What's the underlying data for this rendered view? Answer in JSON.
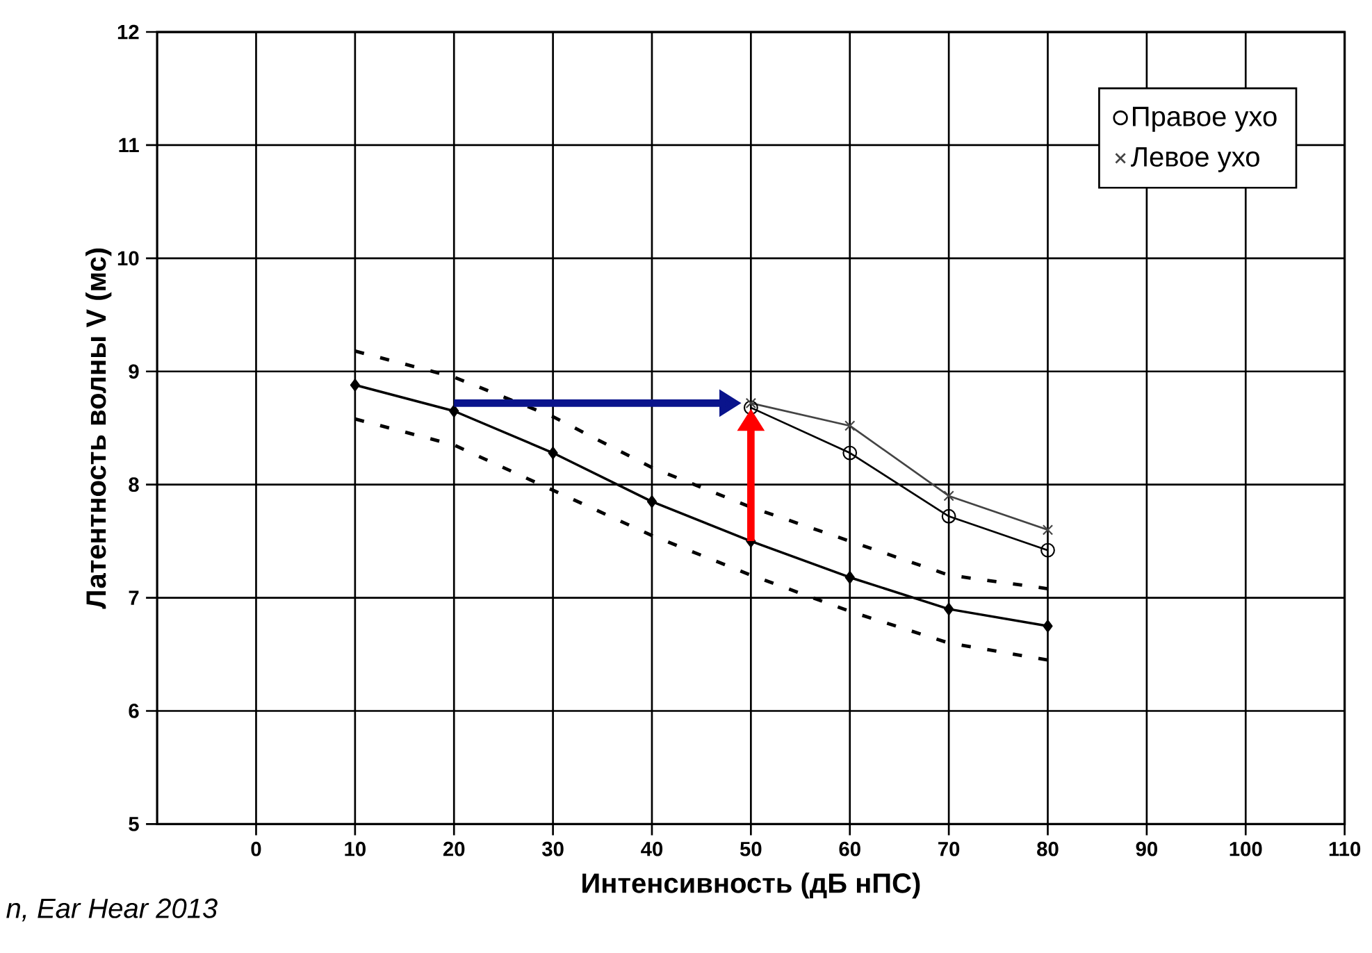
{
  "chart_data": {
    "type": "line",
    "xlabel": "Интенсивность (дБ нПС)",
    "ylabel": "Латентность волны V (мс)",
    "xlim": [
      -10,
      110
    ],
    "xticks": [
      0,
      10,
      20,
      30,
      40,
      50,
      60,
      70,
      80,
      90,
      100,
      110
    ],
    "ylim": [
      5,
      12
    ],
    "yticks": [
      5,
      6,
      7,
      8,
      9,
      10,
      11,
      12
    ],
    "grid": true,
    "legend": "top right",
    "annotations": [
      "n, Ear Hear 2013"
    ],
    "series": [
      {
        "color": "#000000",
        "marker": "diamond",
        "line_style": "solid",
        "x": [
          10,
          20,
          30,
          40,
          50,
          60,
          70,
          80
        ],
        "values": [
          8.88,
          8.65,
          8.28,
          7.85,
          7.5,
          7.18,
          6.9,
          6.75
        ]
      },
      {
        "color": "#000000",
        "marker": "none",
        "line_style": "dashed",
        "x": [
          10,
          20,
          30,
          40,
          50,
          60,
          70,
          80
        ],
        "values": [
          9.18,
          8.95,
          8.6,
          8.15,
          7.8,
          7.5,
          7.2,
          7.08
        ]
      },
      {
        "color": "#000000",
        "marker": "none",
        "line_style": "dashed",
        "x": [
          10,
          20,
          30,
          40,
          50,
          60,
          70,
          80
        ],
        "values": [
          8.58,
          8.35,
          7.95,
          7.55,
          7.2,
          6.88,
          6.6,
          6.45
        ]
      },
      {
        "name": "Правое ухо",
        "color": "#000000",
        "marker": "circle",
        "line_style": "solid",
        "x": [
          50,
          60,
          70,
          80
        ],
        "values": [
          8.68,
          8.28,
          7.72,
          7.42
        ]
      },
      {
        "name": "Левое ухо",
        "color": "#444444",
        "marker": "cross",
        "line_style": "solid",
        "x": [
          50,
          60,
          70,
          80
        ],
        "values": [
          8.72,
          8.52,
          7.9,
          7.6
        ]
      }
    ]
  }
}
